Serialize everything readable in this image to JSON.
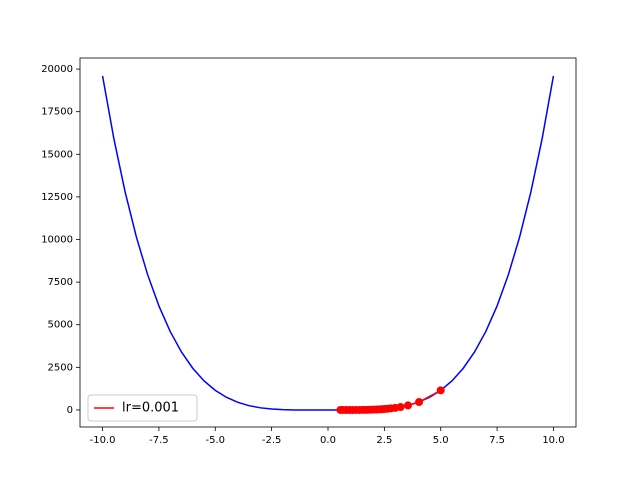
{
  "chart_data": {
    "type": "line",
    "xlim": [
      -11,
      11
    ],
    "ylim": [
      -1000,
      20650
    ],
    "xticks": [
      {
        "value": -10,
        "label": "-10.0"
      },
      -7.5,
      {
        "value": -5,
        "label": "-5.0"
      },
      -2.5,
      {
        "value": 0,
        "label": "0.0"
      },
      2.5,
      {
        "value": 5,
        "label": "5.0"
      },
      7.5,
      {
        "value": 10,
        "label": "10.0"
      }
    ],
    "yticks": [
      0,
      2500,
      5000,
      7500,
      10000,
      12500,
      15000,
      17500,
      20000
    ],
    "legend": "lower left",
    "series": [
      {
        "color": "#0000ff",
        "markers": false,
        "x": [
          -10,
          -9.5,
          -9,
          -8.5,
          -8,
          -7.5,
          -7,
          -6.5,
          -6,
          -5.5,
          -5,
          -4.5,
          -4,
          -3.5,
          -3,
          -2.5,
          -2,
          -1.5,
          -1,
          -0.5,
          0,
          0.5,
          1,
          1.5,
          2,
          2.5,
          3,
          3.5,
          4,
          4.5,
          5,
          5.5,
          6,
          6.5,
          7,
          7.5,
          8,
          8.5,
          9,
          9.5,
          10
        ],
        "values": [
          19600,
          15929,
          12798,
          10151,
          7936,
          6103,
          4606,
          3401,
          2448,
          1709,
          1150,
          739,
          448,
          251,
          126,
          53,
          16,
          1,
          -2,
          -1,
          0,
          -1,
          -2,
          1,
          16,
          53,
          126,
          251,
          448,
          739,
          1150,
          1709,
          2448,
          3401,
          4606,
          6103,
          7936,
          10151,
          12798,
          15929,
          19600
        ]
      },
      {
        "name": "lr=0.001",
        "color": "#ff0000",
        "markers": true,
        "x": [
          5,
          4.04,
          3.55,
          3.22,
          2.98,
          2.79,
          2.64,
          2.5,
          2.38,
          2.27,
          2.15,
          2.0,
          1.85,
          1.7,
          1.55,
          1.4,
          1.25,
          1.1,
          0.95,
          0.8,
          0.65,
          0.55
        ],
        "values": [
          1150,
          467,
          266,
          173,
          121,
          90,
          69,
          53,
          42,
          33,
          24,
          16,
          10,
          5,
          2,
          0,
          -1,
          -2,
          -2,
          -2,
          -1,
          -1
        ]
      }
    ]
  }
}
